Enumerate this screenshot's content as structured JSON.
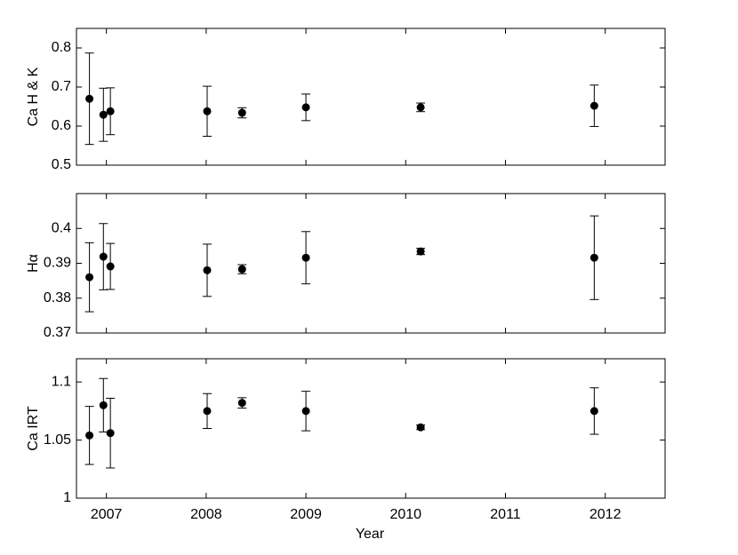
{
  "chart_data": [
    {
      "type": "scatter",
      "ylabel": "Ca H & K",
      "color": "#000000",
      "x": [
        2006.83,
        2006.97,
        2007.04,
        2008.01,
        2008.36,
        2009.0,
        2010.15,
        2011.89
      ],
      "values": [
        0.67,
        0.629,
        0.638,
        0.638,
        0.634,
        0.648,
        0.648,
        0.652
      ],
      "errors": [
        0.117,
        0.068,
        0.06,
        0.064,
        0.013,
        0.034,
        0.011,
        0.053
      ],
      "xlim": [
        2006.7,
        2012.6
      ],
      "xticks": [
        2007,
        2008,
        2009,
        2010,
        2011,
        2012
      ],
      "ylim": [
        0.5,
        0.85
      ],
      "yticks": [
        0.5,
        0.6,
        0.7,
        0.8
      ]
    },
    {
      "type": "scatter",
      "ylabel": "Hα",
      "color": "#000000",
      "x": [
        2006.83,
        2006.97,
        2007.04,
        2008.01,
        2008.36,
        2009.0,
        2010.15,
        2011.89
      ],
      "values": [
        0.386,
        0.3919,
        0.3891,
        0.388,
        0.3883,
        0.3916,
        0.3934,
        0.3916
      ],
      "errors": [
        0.0099,
        0.0095,
        0.0066,
        0.0075,
        0.0013,
        0.0075,
        0.0009,
        0.012
      ],
      "xlim": [
        2006.7,
        2012.6
      ],
      "xticks": [
        2007,
        2008,
        2009,
        2010,
        2011,
        2012
      ],
      "ylim": [
        0.37,
        0.41
      ],
      "yticks": [
        0.37,
        0.38,
        0.39,
        0.4
      ]
    },
    {
      "type": "scatter",
      "ylabel": "Ca IRT",
      "xlabel": "Year",
      "color": "#000000",
      "x": [
        2006.83,
        2006.97,
        2007.04,
        2008.01,
        2008.36,
        2009.0,
        2010.15,
        2011.89
      ],
      "values": [
        1.054,
        1.08,
        1.056,
        1.075,
        1.082,
        1.075,
        1.061,
        1.075
      ],
      "errors": [
        0.025,
        0.023,
        0.03,
        0.015,
        0.0045,
        0.017,
        0.002,
        0.02
      ],
      "xlim": [
        2006.7,
        2012.6
      ],
      "xticks": [
        2007,
        2008,
        2009,
        2010,
        2011,
        2012
      ],
      "ylim": [
        1,
        1.12
      ],
      "yticks": [
        1,
        1.05,
        1.1
      ]
    }
  ]
}
